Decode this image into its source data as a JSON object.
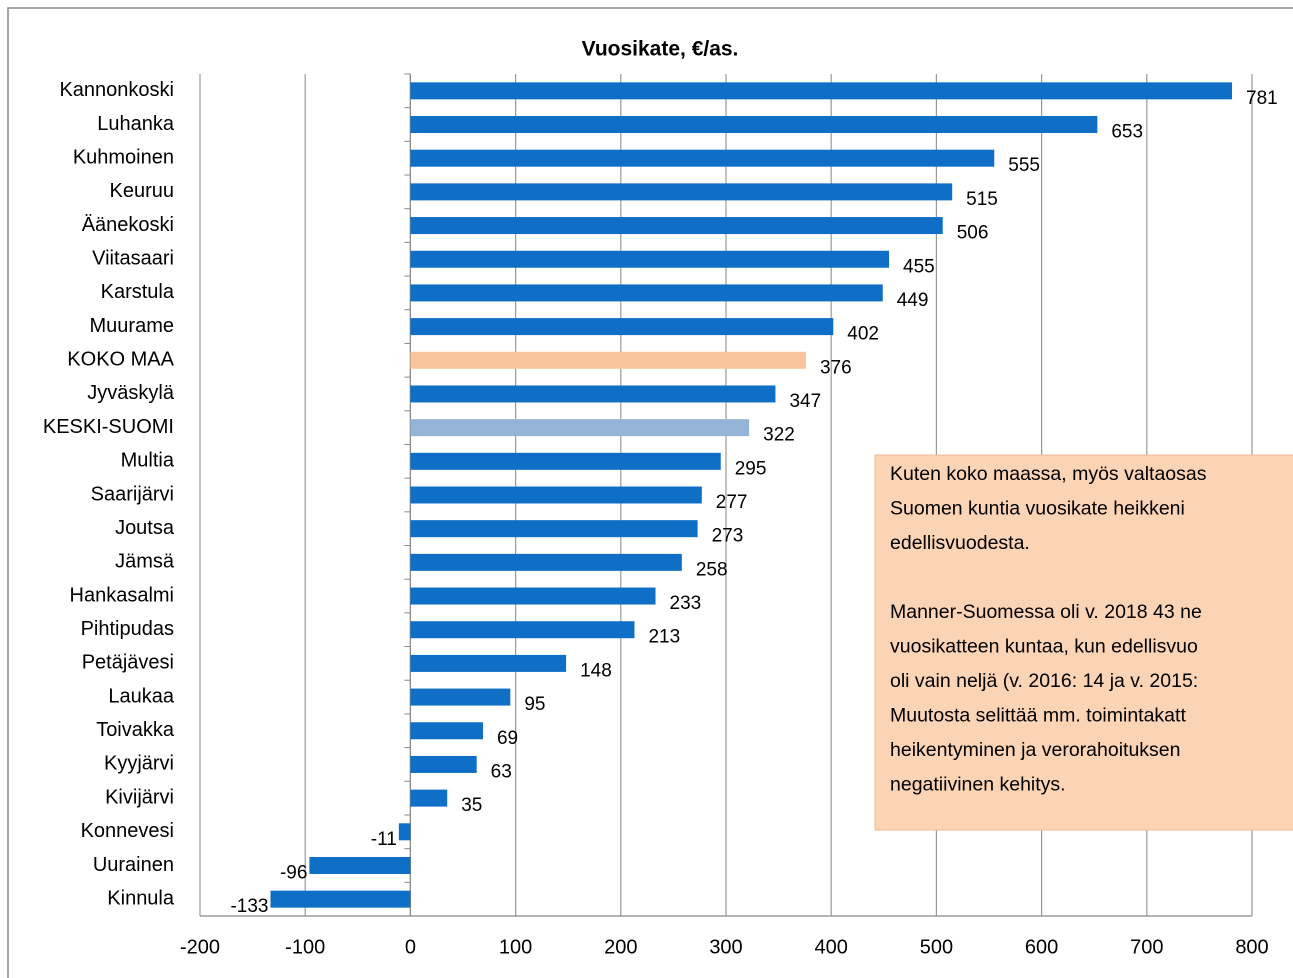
{
  "chart_data": {
    "type": "barh",
    "title": "Vuosikate, €/as.",
    "categories": [
      "Kannonkoski",
      "Luhanka",
      "Kuhmoinen",
      "Keuruu",
      "Äänekoski",
      "Viitasaari",
      "Karstula",
      "Muurame",
      "KOKO MAA",
      "Jyväskylä",
      "KESKI-SUOMI",
      "Multia",
      "Saarijärvi",
      "Joutsa",
      "Jämsä",
      "Hankasalmi",
      "Pihtipudas",
      "Petäjävesi",
      "Laukaa",
      "Toivakka",
      "Kyyjärvi",
      "Kivijärvi",
      "Konnevesi",
      "Uurainen",
      "Kinnula"
    ],
    "values": [
      781,
      653,
      555,
      515,
      506,
      455,
      449,
      402,
      376,
      347,
      322,
      295,
      277,
      273,
      258,
      233,
      213,
      148,
      95,
      69,
      63,
      35,
      -11,
      -96,
      -133
    ],
    "colors": [
      "#0f6fc6",
      "#0f6fc6",
      "#0f6fc6",
      "#0f6fc6",
      "#0f6fc6",
      "#0f6fc6",
      "#0f6fc6",
      "#0f6fc6",
      "#f9c49c",
      "#0f6fc6",
      "#95b3d7",
      "#0f6fc6",
      "#0f6fc6",
      "#0f6fc6",
      "#0f6fc6",
      "#0f6fc6",
      "#0f6fc6",
      "#0f6fc6",
      "#0f6fc6",
      "#0f6fc6",
      "#0f6fc6",
      "#0f6fc6",
      "#0f6fc6",
      "#0f6fc6",
      "#0f6fc6"
    ],
    "xlim": [
      -200,
      800
    ],
    "xticks": [
      -200,
      -100,
      0,
      100,
      200,
      300,
      400,
      500,
      600,
      700,
      800
    ],
    "grid": true,
    "annotation": [
      "Kuten koko maassa, myös valtaosas",
      "Suomen kuntia vuosikate heikkeni",
      "edellisvuodesta.",
      "",
      "Manner-Suomessa oli v. 2018 43 ne",
      "vuosikatteen kuntaa, kun edellisvuo",
      "oli vain neljä (v. 2016: 14 ja v. 2015:",
      "Muutosta selittää mm. toimintakatt",
      "heikentyminen ja verorahoituksen",
      "negatiivinen kehitys."
    ]
  }
}
